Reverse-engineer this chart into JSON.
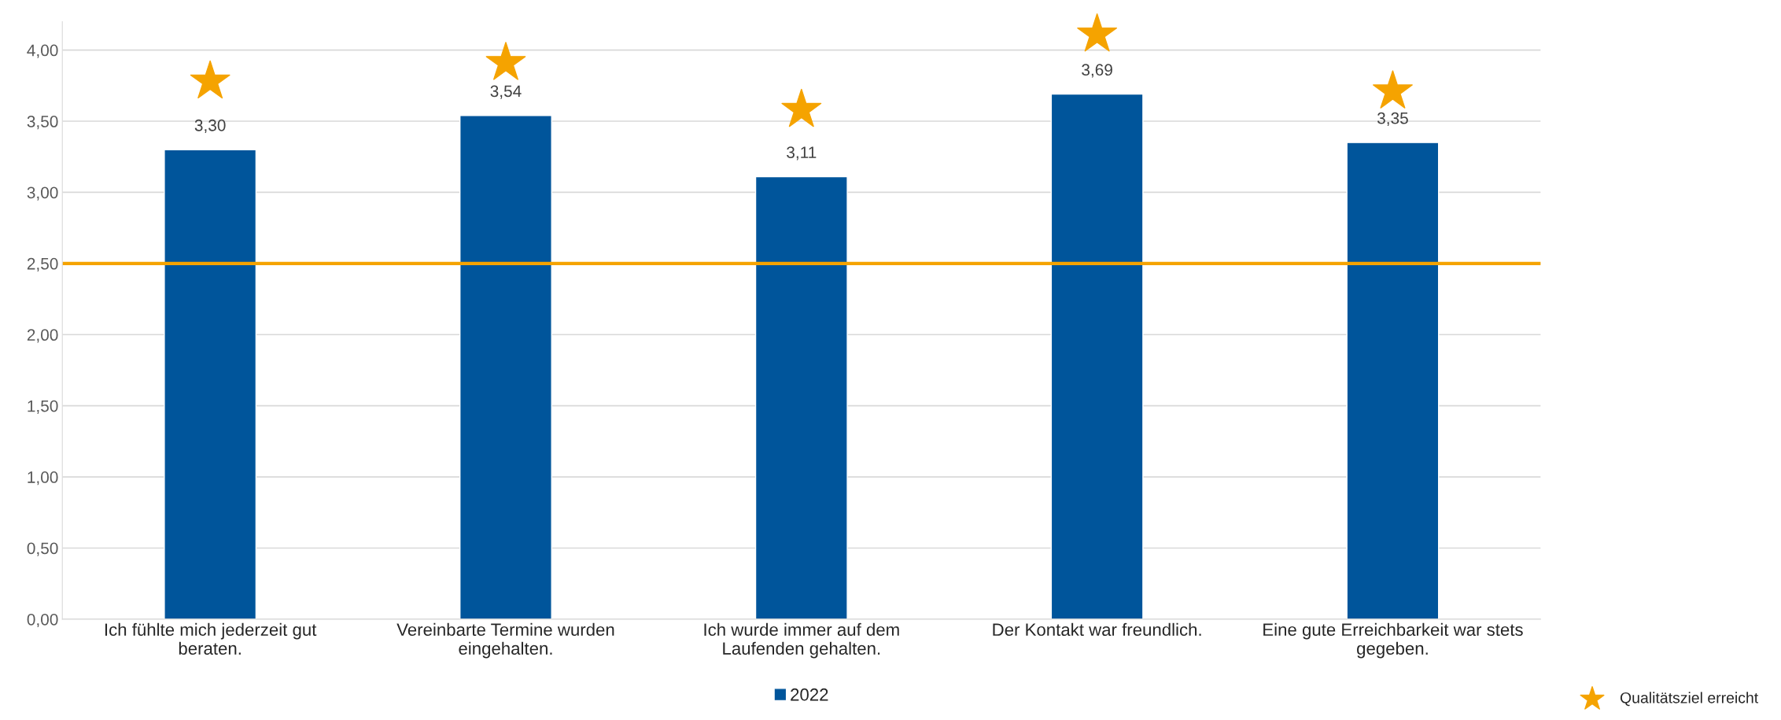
{
  "chart_data": {
    "type": "bar",
    "categories": [
      "Ich fühlte mich jederzeit gut\nberaten.",
      "Vereinbarte Termine wurden\neingehalten.",
      "Ich wurde immer auf dem\nLaufenden gehalten.",
      "Der Kontakt war freundlich.",
      "Eine gute Erreichbarkeit war stets\ngegeben."
    ],
    "series": [
      {
        "name": "2022",
        "color": "#00559b",
        "values": [
          3.3,
          3.54,
          3.11,
          3.69,
          3.35
        ],
        "value_labels": [
          "3,30",
          "3,54",
          "3,11",
          "3,69",
          "3,35"
        ]
      },
      {
        "name": "Qualitätsziel erreicht",
        "type": "scatter",
        "marker": "star",
        "color": "#f5a300",
        "x": [
          "Ich fühlte mich jederzeit gut\nberaten.",
          "Vereinbarte Termine wurden\neingehalten.",
          "Ich wurde immer auf dem\nLaufenden gehalten.",
          "Der Kontakt war freundlich.",
          "Eine gute Erreichbarkeit war stets\ngegeben."
        ],
        "values": [
          3.78,
          3.91,
          3.58,
          4.11,
          3.71
        ]
      }
    ],
    "ref_lines": [
      {
        "axis": "y",
        "value": 2.5,
        "color": "#f5a300",
        "line_style": "solid"
      }
    ],
    "ylim": [
      0,
      4.2
    ],
    "yticks": [
      {
        "value": 0,
        "label": "0,00"
      },
      {
        "value": 0.5,
        "label": "0,50"
      },
      {
        "value": 1,
        "label": "1,00"
      },
      {
        "value": 1.5,
        "label": "1,50"
      },
      {
        "value": 2,
        "label": "2,00"
      },
      {
        "value": 2.5,
        "label": "2,50"
      },
      {
        "value": 3,
        "label": "3,00"
      },
      {
        "value": 3.5,
        "label": "3,50"
      },
      {
        "value": 4,
        "label": "4,00"
      }
    ],
    "grid": "y",
    "legend": "bottom"
  }
}
